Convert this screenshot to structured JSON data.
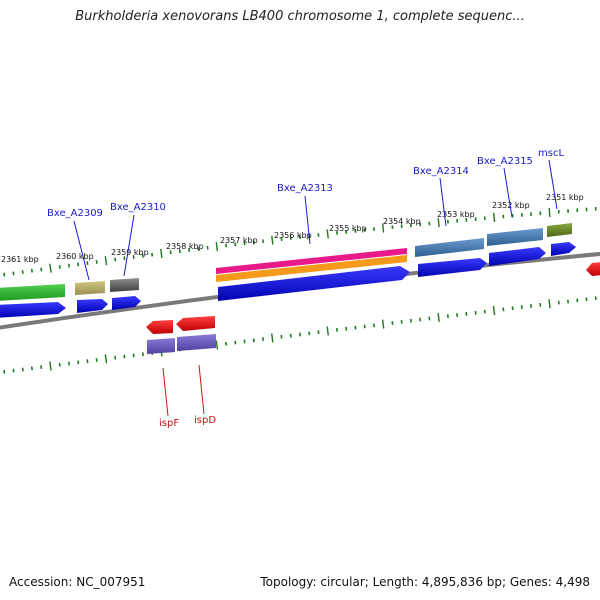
{
  "title": "Burkholderia xenovorans LB400 chromosome 1, complete sequenc...",
  "footer": {
    "accession": "Accession: NC_007951",
    "topology": "Topology: circular; Length: 4,895,836 bp; Genes: 4,498"
  },
  "tick_labels": [
    "2361 kbp",
    "2360 kbp",
    "2359 kbp",
    "2358 kbp",
    "2357 kbp",
    "2356 kbp",
    "2355 kbp",
    "2354 kbp",
    "2353 kbp",
    "2352 kbp",
    "2351 kbp"
  ],
  "gene_labels": [
    {
      "id": "bxe-a2309",
      "text": "Bxe_A2309",
      "color": "#1a1acc"
    },
    {
      "id": "bxe-a2310",
      "text": "Bxe_A2310",
      "color": "#1a1acc"
    },
    {
      "id": "bxe-a2313",
      "text": "Bxe_A2313",
      "color": "#1a1acc"
    },
    {
      "id": "bxe-a2314",
      "text": "Bxe_A2314",
      "color": "#1a1acc"
    },
    {
      "id": "bxe-a2315",
      "text": "Bxe_A2315",
      "color": "#1a1acc"
    },
    {
      "id": "mscl",
      "text": "mscL",
      "color": "#1a1acc"
    },
    {
      "id": "ispf",
      "text": "ispF",
      "color": "#cc1111"
    },
    {
      "id": "ispd",
      "text": "ispD",
      "color": "#cc1111"
    }
  ],
  "colors": {
    "backbone": "#7a7a7a",
    "tick": "#1e7a1e",
    "cds": "#0000dd",
    "reverse_gene": "#ee0000",
    "reverse_cds": "#6655bb",
    "gene_label_forward": "#1a1acc",
    "gene_label_reverse": "#cc1111"
  }
}
